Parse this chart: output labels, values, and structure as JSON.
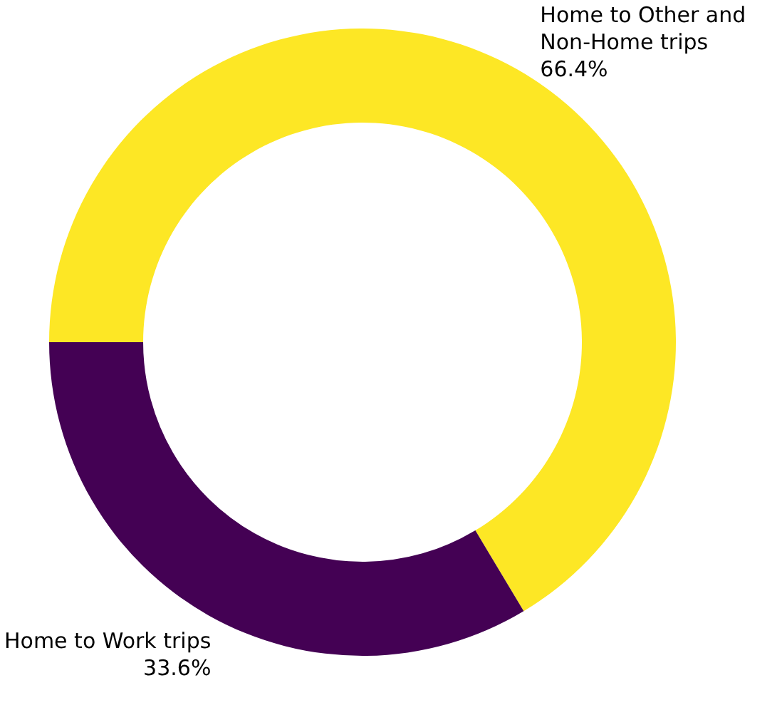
{
  "chart_data": {
    "type": "donut",
    "categories": [
      "Home to Other and Non-Home trips",
      "Home to Work trips"
    ],
    "values": [
      66.4,
      33.6
    ],
    "value_labels": [
      "66.4%",
      "33.6%"
    ],
    "colors": [
      "#fde725",
      "#440154"
    ],
    "legend": false
  }
}
